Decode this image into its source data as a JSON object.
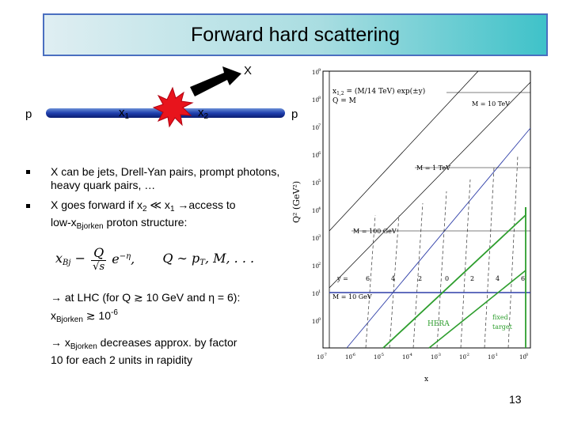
{
  "title": "Forward hard scattering",
  "diagram": {
    "x_label": "X",
    "p_left": "p",
    "p_right": "p",
    "x1": "x",
    "x1_sub": "1",
    "x2": "x",
    "x2_sub": "2"
  },
  "bullets": {
    "b1": "X can be jets, Drell-Yan pairs, prompt photons, heavy quark pairs, …",
    "b2_a": "X goes forward if x",
    "b2_sub2": "2",
    "b2_b": " ≪ x",
    "b2_sub1": "1",
    "b2_c": " →access to",
    "b2_d": "low-x",
    "b2_sub_bj": "Bjorken",
    "b2_e": " proton structure:"
  },
  "formula": {
    "xbj": "x",
    "xbj_sub": "Bj",
    "Q": "Q",
    "sqrt_s": "√s",
    "e": "e",
    "minus_eta": "−η",
    "rhs": "Q ∼ p",
    "rhs_sub": "T",
    "rhs_tail": ", M, . . ."
  },
  "lhc": {
    "line1": "→ at LHC (for Q ≳ 10 GeV and η = 6):",
    "x": "x",
    "x_sub": "Bjorken",
    "ge": " ≳ 10",
    "exp": "-6"
  },
  "decrease": {
    "arrow": "→ x",
    "sub": "Bjorken",
    "rest": " decreases approx. by factor",
    "line2": "10 for each 2 units in rapidity"
  },
  "plot": {
    "legend_line1": "x",
    "legend_sub": "1,2",
    "legend_line1_rest": " = (M/14 TeV) exp(±y)",
    "legend_line2": "Q = M",
    "ylabel": "Q² (GeV²)",
    "xlabel": "x",
    "label_m10tev": "M = 10 TeV",
    "label_m1tev": "M = 1 TeV",
    "label_m100gev": "M = 100 GeV",
    "label_m10gev": "M = 10 GeV",
    "label_y": "y =",
    "y_ticks": [
      "6",
      "4",
      "2",
      "0",
      "2",
      "4",
      "6"
    ],
    "label_hera": "HERA",
    "label_fixed": "fixed",
    "label_target": "target",
    "yaxis_ticks": [
      "10",
      "10",
      "10",
      "10",
      "10",
      "10",
      "10",
      "10",
      "10",
      "10"
    ],
    "yaxis_exps": [
      "9",
      "8",
      "7",
      "6",
      "5",
      "4",
      "3",
      "2",
      "1",
      "0"
    ],
    "xaxis_ticks": [
      "10",
      "10",
      "10",
      "10",
      "10",
      "10",
      "10",
      "10"
    ],
    "xaxis_exps": [
      "-7",
      "-6",
      "-5",
      "-4",
      "-3",
      "-2",
      "-1",
      "0"
    ],
    "colors": {
      "lhc": "#2f3fa8",
      "hera": "#2e9e2e",
      "dashed": "#333333"
    }
  },
  "page_number": "13"
}
